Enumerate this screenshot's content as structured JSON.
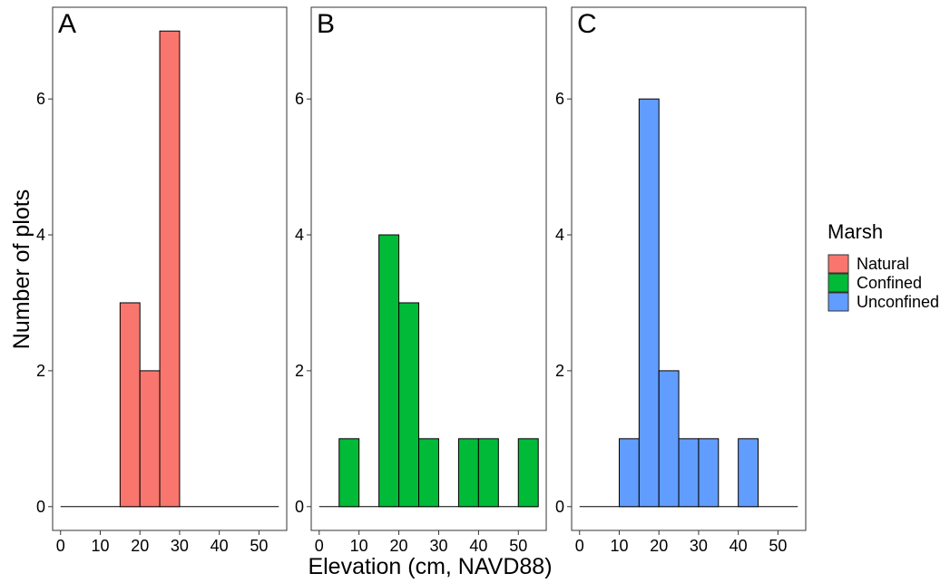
{
  "chart_data": {
    "type": "bar",
    "xlabel": "Elevation (cm, NAVD88)",
    "ylabel": "Number of plots",
    "xlim": [
      -2,
      57
    ],
    "ylim": [
      -0.35,
      7.35
    ],
    "bin_width": 5,
    "xticks": [
      0,
      10,
      20,
      30,
      40,
      50
    ],
    "yticks": [
      0,
      2,
      4,
      6
    ],
    "legend": {
      "title": "Marsh",
      "placement": "right",
      "entries": [
        "Natural",
        "Confined",
        "Unconfined"
      ]
    },
    "panels": [
      {
        "tag": "A",
        "series": "Natural",
        "color": "#F8766D",
        "bin_starts": [
          0,
          5,
          10,
          15,
          20,
          25,
          30,
          35,
          40,
          45,
          50
        ],
        "counts": [
          0,
          0,
          0,
          3,
          2,
          7,
          0,
          0,
          0,
          0,
          0
        ]
      },
      {
        "tag": "B",
        "series": "Confined",
        "color": "#00BA38",
        "bin_starts": [
          0,
          5,
          10,
          15,
          20,
          25,
          30,
          35,
          40,
          45,
          50
        ],
        "counts": [
          0,
          1,
          0,
          4,
          3,
          1,
          0,
          1,
          1,
          0,
          1
        ]
      },
      {
        "tag": "C",
        "series": "Unconfined",
        "color": "#619CFF",
        "bin_starts": [
          0,
          5,
          10,
          15,
          20,
          25,
          30,
          35,
          40,
          45,
          50
        ],
        "counts": [
          0,
          0,
          1,
          6,
          2,
          1,
          1,
          0,
          1,
          0,
          0
        ]
      }
    ]
  }
}
